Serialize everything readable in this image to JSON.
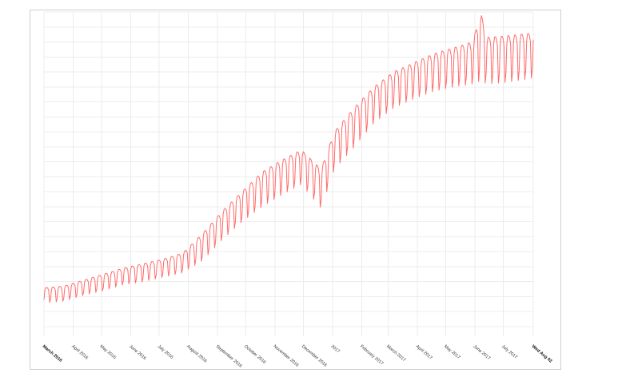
{
  "chart_data": {
    "type": "line",
    "title": "",
    "xlabel": "",
    "ylabel": "",
    "grid": true,
    "legend": "none",
    "x_range": [
      "2016-03-01",
      "2017-08-02"
    ],
    "y_range": [
      0,
      21
    ],
    "x_tick_labels": [
      {
        "label": "March 2016",
        "date": "2016-03-01",
        "bold": true
      },
      {
        "label": "April 2016",
        "date": "2016-04-01",
        "bold": false
      },
      {
        "label": "May 2016",
        "date": "2016-05-01",
        "bold": false
      },
      {
        "label": "June 2016",
        "date": "2016-06-01",
        "bold": false
      },
      {
        "label": "July 2016",
        "date": "2016-07-01",
        "bold": false
      },
      {
        "label": "August 2016",
        "date": "2016-08-01",
        "bold": false
      },
      {
        "label": "September 2016",
        "date": "2016-09-01",
        "bold": false
      },
      {
        "label": "October 2016",
        "date": "2016-10-01",
        "bold": false
      },
      {
        "label": "November 2016",
        "date": "2016-11-01",
        "bold": false
      },
      {
        "label": "December 2016",
        "date": "2016-12-01",
        "bold": false
      },
      {
        "label": "2017",
        "date": "2017-01-01",
        "bold": false
      },
      {
        "label": "February 2017",
        "date": "2017-02-01",
        "bold": false
      },
      {
        "label": "March 2017",
        "date": "2017-03-01",
        "bold": false
      },
      {
        "label": "April 2017",
        "date": "2017-04-01",
        "bold": false
      },
      {
        "label": "May 2017",
        "date": "2017-05-01",
        "bold": false
      },
      {
        "label": "June 2017",
        "date": "2017-06-01",
        "bold": false
      },
      {
        "label": "July 2017",
        "date": "2017-07-01",
        "bold": false
      },
      {
        "label": "Wed Aug 02",
        "date": "2017-08-02",
        "bold": true
      }
    ],
    "series": [
      {
        "color": "#ff6b6b",
        "weekly_profile": [
          0.2,
          0.85,
          1.0,
          1.0,
          0.95,
          0.8,
          0.0
        ],
        "weekly_values": [
          {
            "week_start": "2016-03-01",
            "high": 2.6,
            "low": 1.6
          },
          {
            "week_start": "2016-03-22",
            "high": 2.7,
            "low": 1.7
          },
          {
            "week_start": "2016-04-12",
            "high": 3.1,
            "low": 2.1
          },
          {
            "week_start": "2016-05-03",
            "high": 3.5,
            "low": 2.4
          },
          {
            "week_start": "2016-05-24",
            "high": 3.9,
            "low": 2.8
          },
          {
            "week_start": "2016-06-14",
            "high": 4.2,
            "low": 3.0
          },
          {
            "week_start": "2016-07-05",
            "high": 4.5,
            "low": 3.3
          },
          {
            "week_start": "2016-07-26",
            "high": 4.9,
            "low": 3.6
          },
          {
            "week_start": "2016-08-16",
            "high": 6.2,
            "low": 4.4
          },
          {
            "week_start": "2016-09-06",
            "high": 7.7,
            "low": 5.8
          },
          {
            "week_start": "2016-09-27",
            "high": 9.0,
            "low": 7.0
          },
          {
            "week_start": "2016-10-18",
            "high": 10.3,
            "low": 8.0
          },
          {
            "week_start": "2016-11-08",
            "high": 11.1,
            "low": 8.8
          },
          {
            "week_start": "2016-11-29",
            "high": 11.8,
            "low": 9.5
          },
          {
            "week_start": "2016-12-20",
            "high": 10.5,
            "low": 7.9
          },
          {
            "week_start": "2017-01-03",
            "high": 13.0,
            "low": 10.5
          },
          {
            "week_start": "2017-01-24",
            "high": 14.6,
            "low": 12.0
          },
          {
            "week_start": "2017-02-14",
            "high": 16.0,
            "low": 13.6
          },
          {
            "week_start": "2017-03-07",
            "high": 17.0,
            "low": 14.6
          },
          {
            "week_start": "2017-03-28",
            "high": 17.6,
            "low": 15.2
          },
          {
            "week_start": "2017-04-18",
            "high": 18.2,
            "low": 15.7
          },
          {
            "week_start": "2017-05-09",
            "high": 18.6,
            "low": 16.0
          },
          {
            "week_start": "2017-05-30",
            "high": 19.0,
            "low": 16.2
          },
          {
            "week_start": "2017-06-07",
            "high": 21.0,
            "low": 16.4
          },
          {
            "week_start": "2017-06-14",
            "high": 19.3,
            "low": 16.2
          },
          {
            "week_start": "2017-07-05",
            "high": 19.4,
            "low": 16.3
          },
          {
            "week_start": "2017-08-02",
            "high": 19.6,
            "low": 16.6
          }
        ]
      }
    ]
  }
}
